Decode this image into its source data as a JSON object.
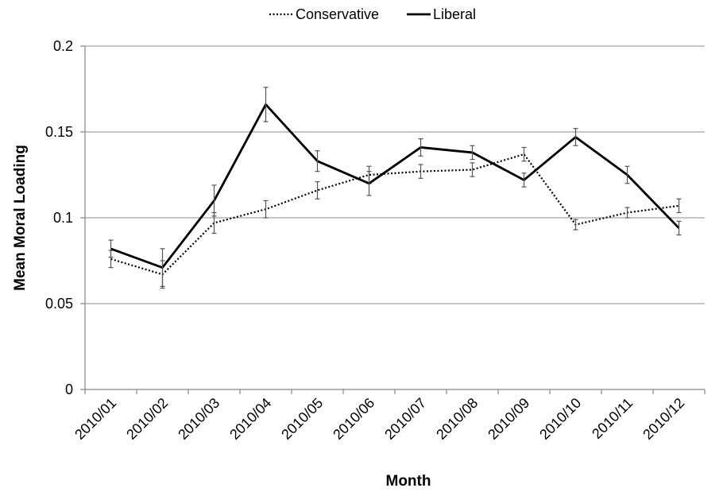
{
  "chart_data": {
    "type": "line",
    "title": "",
    "xlabel": "Month",
    "ylabel": "Mean Moral Loading",
    "categories": [
      "2010/01",
      "2010/02",
      "2010/03",
      "2010/04",
      "2010/05",
      "2010/06",
      "2010/07",
      "2010/08",
      "2010/09",
      "2010/10",
      "2010/11",
      "2010/12"
    ],
    "ylim": [
      0,
      0.2
    ],
    "yticks": [
      0,
      0.05,
      0.1,
      0.15,
      0.2
    ],
    "ytick_labels": [
      "0",
      "0.05",
      "0.1",
      "0.15",
      "0.2"
    ],
    "grid": "horizontal",
    "legend_position": "top-center",
    "series": [
      {
        "name": "Conservative",
        "style": "dotted",
        "color": "#000000",
        "values": [
          0.076,
          0.067,
          0.097,
          0.105,
          0.116,
          0.125,
          0.127,
          0.128,
          0.137,
          0.096,
          0.103,
          0.107
        ],
        "errors": [
          0.005,
          0.008,
          0.006,
          0.005,
          0.005,
          0.005,
          0.004,
          0.004,
          0.004,
          0.003,
          0.003,
          0.004
        ]
      },
      {
        "name": "Liberal",
        "style": "solid",
        "color": "#000000",
        "values": [
          0.082,
          0.071,
          0.11,
          0.166,
          0.133,
          0.12,
          0.141,
          0.138,
          0.122,
          0.147,
          0.125,
          0.094
        ],
        "errors": [
          0.005,
          0.011,
          0.009,
          0.01,
          0.006,
          0.007,
          0.005,
          0.004,
          0.004,
          0.005,
          0.005,
          0.004
        ]
      }
    ]
  }
}
